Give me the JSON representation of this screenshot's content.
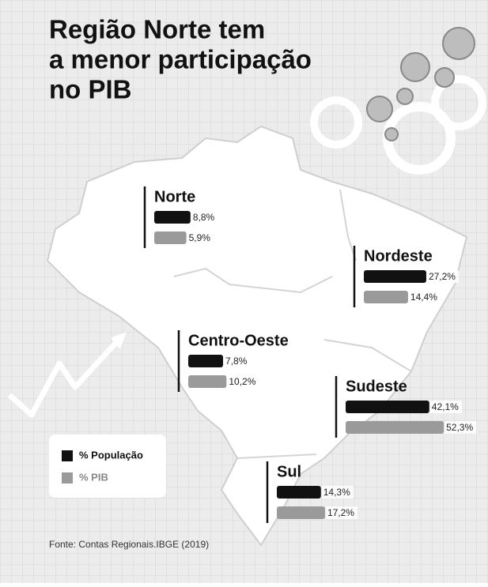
{
  "chart_data": {
    "type": "bar",
    "title": [
      "Região Norte tem",
      "a menor participação",
      "no PIB"
    ],
    "categories": [
      "Norte",
      "Nordeste",
      "Centro-Oeste",
      "Sudeste",
      "Sul"
    ],
    "series": [
      {
        "name": "% População",
        "color": "#111111",
        "values": [
          8.8,
          27.2,
          7.8,
          42.1,
          14.3
        ],
        "value_labels": [
          "8,8%",
          "27,2%",
          "7,8%",
          "42,1%",
          "14,3%"
        ]
      },
      {
        "name": "% PIB",
        "color": "#9a9a9a",
        "values": [
          5.9,
          14.4,
          10.2,
          52.3,
          17.2
        ],
        "value_labels": [
          "5,9%",
          "14,4%",
          "10,2%",
          "52,3%",
          "17,2%"
        ]
      }
    ],
    "source": "Fonte: Contas Regionais.IBGE (2019)"
  }
}
